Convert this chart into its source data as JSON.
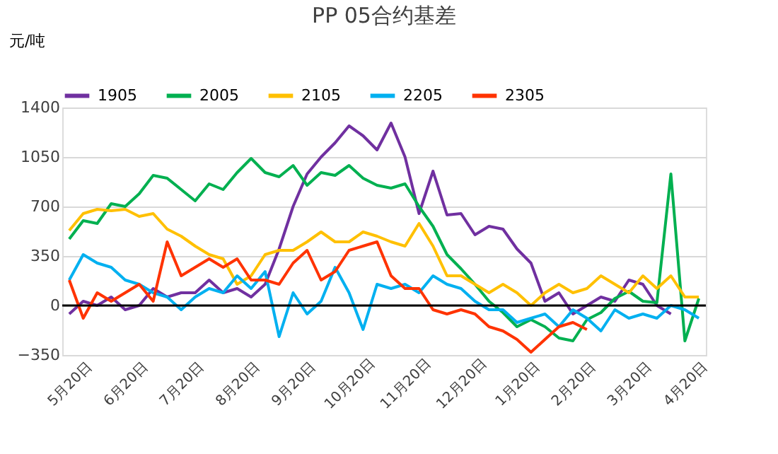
{
  "chart_data": {
    "type": "line",
    "title": "PP 05合约基差",
    "ylabel": "元/吨",
    "categories": [
      "5月20日",
      null,
      null,
      null,
      "6月20日",
      null,
      null,
      null,
      "7月20日",
      null,
      null,
      null,
      "8月20日",
      null,
      null,
      null,
      "9月20日",
      null,
      null,
      null,
      "10月20日",
      null,
      null,
      null,
      "11月20日",
      null,
      null,
      null,
      "12月20日",
      null,
      null,
      null,
      "1月20日",
      null,
      null,
      null,
      "2月20日",
      null,
      null,
      null,
      "3月20日",
      null,
      null,
      null,
      "4月20日",
      null
    ],
    "series": [
      {
        "name": "1905",
        "color": "#7030a0",
        "values": [
          -60,
          30,
          0,
          60,
          -30,
          0,
          120,
          60,
          90,
          90,
          180,
          90,
          120,
          60,
          150,
          400,
          700,
          930,
          1050,
          1150,
          1270,
          1200,
          1100,
          1290,
          1050,
          650,
          950,
          640,
          650,
          500,
          560,
          540,
          400,
          300,
          30,
          90,
          -60,
          0,
          60,
          30,
          180,
          150,
          0,
          -60,
          null,
          null
        ]
      },
      {
        "name": "2005",
        "color": "#00b050",
        "values": [
          470,
          600,
          580,
          720,
          700,
          790,
          920,
          900,
          820,
          740,
          860,
          820,
          940,
          1040,
          940,
          910,
          990,
          850,
          940,
          920,
          990,
          900,
          850,
          830,
          860,
          700,
          560,
          360,
          260,
          150,
          30,
          -50,
          -150,
          -100,
          -150,
          -230,
          -250,
          -100,
          -50,
          50,
          100,
          30,
          20,
          930,
          -250,
          50
        ]
      },
      {
        "name": "2105",
        "color": "#ffc000",
        "values": [
          530,
          650,
          680,
          670,
          680,
          630,
          650,
          540,
          490,
          420,
          360,
          330,
          150,
          210,
          360,
          390,
          390,
          450,
          520,
          450,
          450,
          520,
          490,
          450,
          420,
          580,
          420,
          210,
          210,
          150,
          90,
          150,
          90,
          0,
          90,
          150,
          90,
          120,
          210,
          150,
          90,
          210,
          120,
          210,
          60,
          60
        ]
      },
      {
        "name": "2205",
        "color": "#00b0f0",
        "values": [
          180,
          360,
          300,
          270,
          180,
          150,
          90,
          60,
          -30,
          60,
          120,
          90,
          210,
          120,
          240,
          -220,
          90,
          -60,
          30,
          270,
          90,
          -170,
          150,
          120,
          150,
          90,
          210,
          150,
          120,
          30,
          -30,
          -30,
          -120,
          -90,
          -60,
          -150,
          -30,
          -90,
          -180,
          -30,
          -90,
          -60,
          -90,
          0,
          -30,
          -90
        ]
      },
      {
        "name": "2305",
        "color": "#ff3300",
        "values": [
          180,
          -90,
          90,
          30,
          90,
          150,
          30,
          450,
          210,
          270,
          330,
          270,
          330,
          180,
          180,
          150,
          300,
          390,
          180,
          240,
          390,
          420,
          450,
          210,
          120,
          120,
          -30,
          -60,
          -30,
          -60,
          -150,
          -180,
          -240,
          -330,
          -240,
          -150,
          -120,
          -170,
          null,
          null,
          null,
          null,
          null,
          null,
          null,
          null
        ]
      }
    ],
    "ylim": [
      -350,
      1400
    ],
    "yticks": [
      -350,
      0,
      350,
      700,
      1050,
      1400
    ],
    "ref_lines": [
      {
        "axis": "y",
        "value": 0,
        "color": "#000000"
      }
    ],
    "grid": "y",
    "legend": "top",
    "marker": "none",
    "line_style": "solid"
  }
}
